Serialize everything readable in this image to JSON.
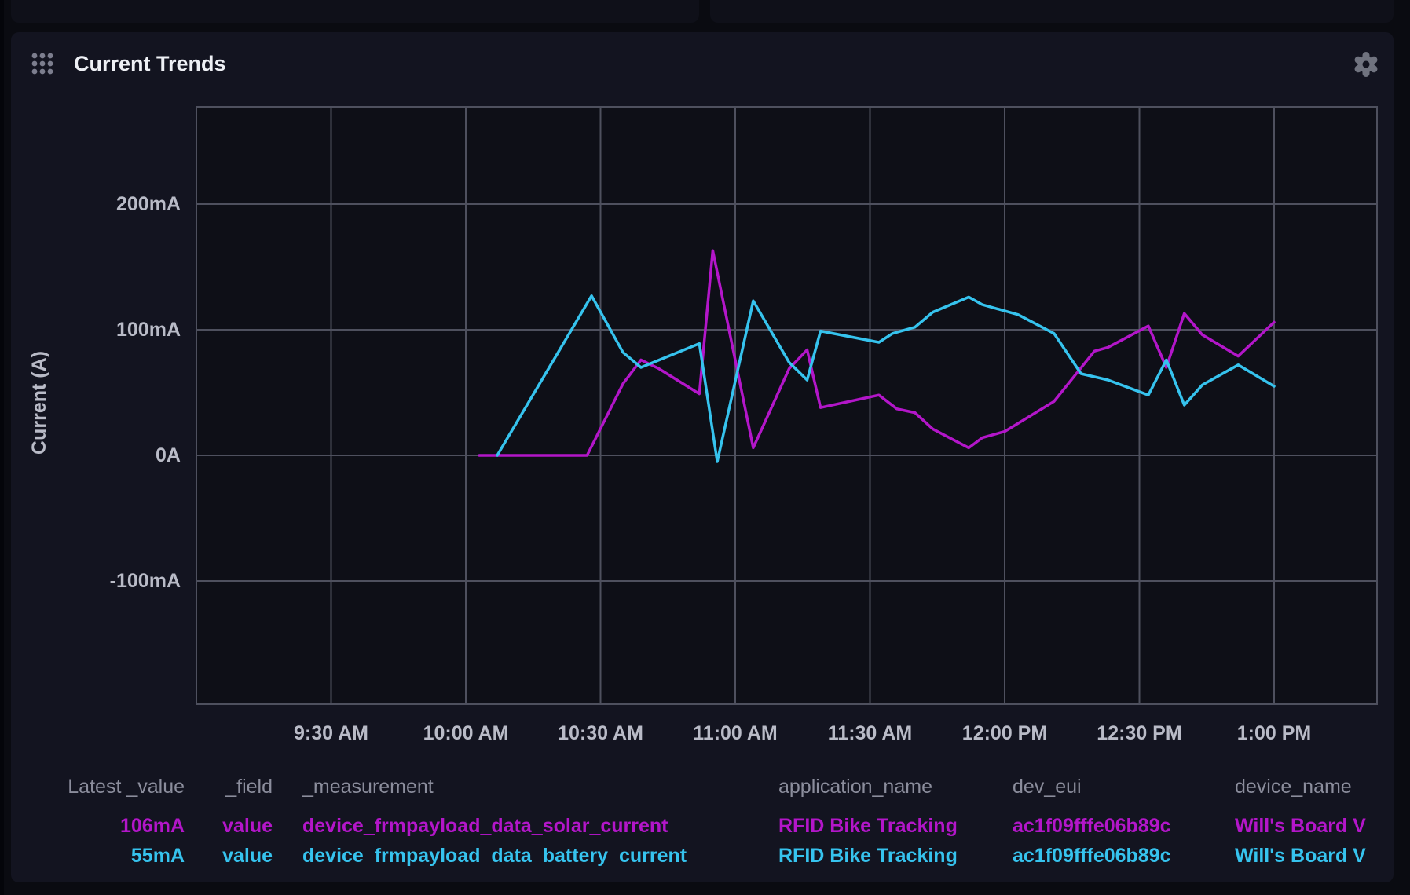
{
  "panel": {
    "title": "Current Trends",
    "icons": {
      "drag_handle": "grid-of-dots",
      "settings": "gear"
    }
  },
  "colors": {
    "page_bg": "#0a0b11",
    "stub_bg": "#0f1019",
    "panel_bg": "#131420",
    "plot_bg": "#0e0f17",
    "grid": "#4e505e",
    "axis_text": "#b9bbc7",
    "header_text": "#8b8d9c",
    "title_text": "#eef0f5",
    "icon": "#70737f",
    "magenta": "#b316c9",
    "cyan": "#36c3ee"
  },
  "legend": {
    "headers": [
      "Latest _value",
      "_field",
      "_measurement",
      "application_name",
      "dev_eui",
      "device_name"
    ],
    "rows": [
      {
        "latest_value": "106mA",
        "field": "value",
        "measurement": "device_frmpayload_data_solar_current",
        "application_name": "RFID Bike Tracking",
        "dev_eui": "ac1f09fffe06b89c",
        "device_name": "Will's Board V",
        "color": "#b316c9"
      },
      {
        "latest_value": "55mA",
        "field": "value",
        "measurement": "device_frmpayload_data_battery_current",
        "application_name": "RFID Bike Tracking",
        "dev_eui": "ac1f09fffe06b89c",
        "device_name": "Will's Board V",
        "color": "#36c3ee"
      }
    ]
  },
  "chart_data": {
    "type": "line",
    "title": "Current Trends",
    "xlabel": "",
    "ylabel": "Current (A)",
    "grid": true,
    "legend_position": "bottom",
    "x_range": [
      "9:00 AM",
      "1:23 PM"
    ],
    "y_range_mA": [
      -198,
      278
    ],
    "x_ticks": [
      {
        "t": "9:30",
        "label": "9:30 AM"
      },
      {
        "t": "10:00",
        "label": "10:00 AM"
      },
      {
        "t": "10:30",
        "label": "10:30 AM"
      },
      {
        "t": "11:00",
        "label": "11:00 AM"
      },
      {
        "t": "11:30",
        "label": "11:30 AM"
      },
      {
        "t": "12:00",
        "label": "12:00 PM"
      },
      {
        "t": "12:30",
        "label": "12:30 PM"
      },
      {
        "t": "13:00",
        "label": "1:00 PM"
      }
    ],
    "y_ticks": [
      {
        "v": 200,
        "label": "200mA"
      },
      {
        "v": 100,
        "label": "100mA"
      },
      {
        "v": 0,
        "label": "0A"
      },
      {
        "v": -100,
        "label": "-100mA"
      }
    ],
    "series": [
      {
        "name": "device_frmpayload_data_solar_current",
        "color": "#b316c9",
        "unit": "mA",
        "points": [
          [
            "10:03",
            0
          ],
          [
            "10:27",
            0
          ],
          [
            "10:35",
            57
          ],
          [
            "10:39",
            76
          ],
          [
            "10:43",
            69
          ],
          [
            "10:52",
            49
          ],
          [
            "10:55",
            163
          ],
          [
            "11:04",
            6
          ],
          [
            "11:12",
            69
          ],
          [
            "11:16",
            84
          ],
          [
            "11:19",
            38
          ],
          [
            "11:32",
            48
          ],
          [
            "11:36",
            37
          ],
          [
            "11:40",
            34
          ],
          [
            "11:44",
            21
          ],
          [
            "11:52",
            6
          ],
          [
            "11:55",
            14
          ],
          [
            "12:00",
            19
          ],
          [
            "12:11",
            43
          ],
          [
            "12:20",
            83
          ],
          [
            "12:23",
            86
          ],
          [
            "12:32",
            103
          ],
          [
            "12:36",
            70
          ],
          [
            "12:40",
            113
          ],
          [
            "12:44",
            96
          ],
          [
            "12:52",
            79
          ],
          [
            "13:00",
            106
          ]
        ]
      },
      {
        "name": "device_frmpayload_data_battery_current",
        "color": "#36c3ee",
        "unit": "mA",
        "points": [
          [
            "10:07",
            0
          ],
          [
            "10:28",
            127
          ],
          [
            "10:35",
            82
          ],
          [
            "10:39",
            70
          ],
          [
            "10:52",
            89
          ],
          [
            "10:56",
            -5
          ],
          [
            "11:04",
            123
          ],
          [
            "11:12",
            74
          ],
          [
            "11:16",
            60
          ],
          [
            "11:19",
            99
          ],
          [
            "11:32",
            90
          ],
          [
            "11:35",
            97
          ],
          [
            "11:40",
            102
          ],
          [
            "11:44",
            114
          ],
          [
            "11:52",
            126
          ],
          [
            "11:55",
            120
          ],
          [
            "12:03",
            112
          ],
          [
            "12:11",
            97
          ],
          [
            "12:17",
            65
          ],
          [
            "12:23",
            60
          ],
          [
            "12:32",
            48
          ],
          [
            "12:36",
            76
          ],
          [
            "12:40",
            40
          ],
          [
            "12:44",
            56
          ],
          [
            "12:52",
            72
          ],
          [
            "13:00",
            55
          ]
        ]
      }
    ]
  }
}
